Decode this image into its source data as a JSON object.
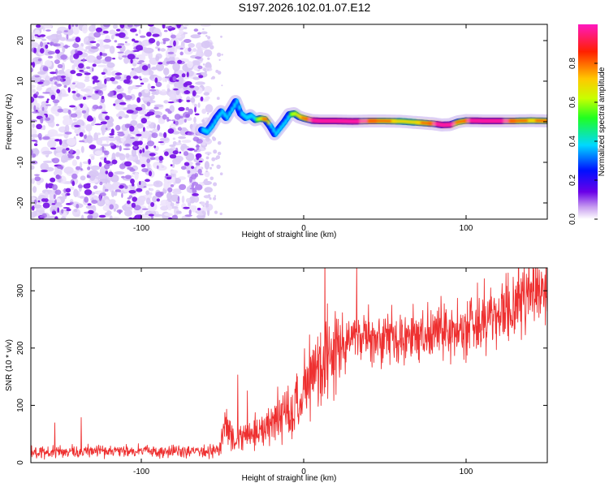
{
  "title": "S197.2026.102.01.07.E12",
  "chart_data": [
    {
      "type": "heatmap",
      "title": "S197.2026.102.01.07.E12",
      "xlabel": "Height of straight line (km)",
      "ylabel": "Frequency (Hz)",
      "xlim": [
        -168,
        150
      ],
      "ylim": [
        -24,
        24
      ],
      "xticks": [
        -100,
        0,
        100
      ],
      "yticks": [
        -20,
        -10,
        0,
        10,
        20
      ],
      "noise_region_x": [
        -168,
        -62
      ],
      "ridge": {
        "x": [
          -63,
          -60,
          -57,
          -54,
          -51,
          -48,
          -45,
          -42,
          -39,
          -36,
          -33,
          -30,
          -27,
          -24,
          -21,
          -18,
          -15,
          -12,
          -9,
          -6,
          -3,
          0,
          5,
          10,
          20,
          30,
          40,
          50,
          60,
          70,
          80,
          85,
          90,
          95,
          100,
          110,
          120,
          130,
          140,
          150
        ],
        "y": [
          -2,
          -2.5,
          -1,
          1,
          2.5,
          1,
          3,
          5,
          2,
          1,
          1.5,
          0.5,
          0.8,
          0.6,
          -1,
          -3,
          -1.5,
          0,
          1.8,
          2,
          1.2,
          0.8,
          0.3,
          0.2,
          0.2,
          0.1,
          0.2,
          0.2,
          0.1,
          -0.2,
          -0.5,
          -0.8,
          -0.7,
          0,
          0.3,
          0.2,
          0.2,
          0.2,
          0.3,
          0.2
        ],
        "amplitude": [
          0.2,
          0.35,
          0.25,
          0.3,
          0.35,
          0.3,
          0.35,
          0.3,
          0.35,
          0.3,
          0.35,
          0.45,
          0.55,
          0.7,
          0.35,
          0.25,
          0.35,
          0.4,
          0.45,
          0.5,
          0.6,
          0.7,
          0.85,
          0.9,
          0.92,
          0.85,
          0.75,
          0.65,
          0.55,
          0.6,
          0.8,
          0.95,
          0.85,
          0.6,
          0.8,
          0.9,
          0.85,
          0.7,
          0.6,
          0.7
        ]
      },
      "colorbar": {
        "label": "Normalized spectral amplitude",
        "ticks": [
          0.0,
          0.2,
          0.4,
          0.6,
          0.8
        ],
        "range": [
          0,
          1
        ]
      }
    },
    {
      "type": "line",
      "xlabel": "Height of straight line (km)",
      "ylabel": "SNR (10 * v/v)",
      "xlim": [
        -168,
        150
      ],
      "ylim": [
        0,
        340
      ],
      "xticks": [
        -100,
        0,
        100
      ],
      "yticks": [
        0,
        100,
        200,
        300
      ],
      "series": [
        {
          "name": "SNR",
          "color": "#ee3030",
          "x": [
            -168,
            -150,
            -130,
            -110,
            -90,
            -70,
            -60,
            -55,
            -52,
            -50,
            -48,
            -45,
            -40,
            -35,
            -30,
            -25,
            -20,
            -15,
            -10,
            -7,
            -5,
            0,
            5,
            10,
            15,
            20,
            25,
            30,
            40,
            50,
            60,
            70,
            80,
            90,
            100,
            110,
            120,
            130,
            140,
            150
          ],
          "y": [
            18,
            18,
            20,
            20,
            19,
            20,
            20,
            21,
            22,
            50,
            70,
            40,
            45,
            50,
            55,
            60,
            70,
            85,
            95,
            80,
            100,
            125,
            150,
            170,
            185,
            200,
            210,
            218,
            220,
            225,
            222,
            220,
            225,
            230,
            240,
            245,
            255,
            280,
            300,
            305
          ]
        }
      ]
    }
  ]
}
